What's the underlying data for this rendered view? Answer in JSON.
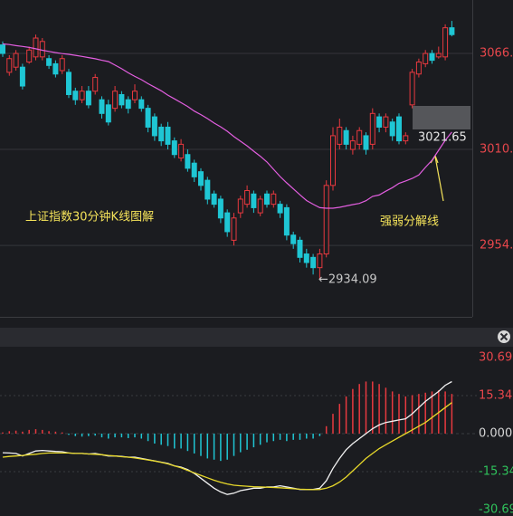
{
  "chart_data": [
    {
      "type": "candlestick",
      "ohlc": [
        [
          3071,
          3073,
          3064,
          3066
        ],
        [
          3055,
          3065,
          3053,
          3063
        ],
        [
          3058,
          3068,
          3056,
          3066
        ],
        [
          3058,
          3060,
          3045,
          3047
        ],
        [
          3061,
          3070,
          3060,
          3068
        ],
        [
          3064,
          3077,
          3062,
          3075
        ],
        [
          3064,
          3075,
          3062,
          3073
        ],
        [
          3063,
          3065,
          3057,
          3059
        ],
        [
          3060,
          3062,
          3052,
          3054
        ],
        [
          3056,
          3065,
          3054,
          3063
        ],
        [
          3055,
          3057,
          3040,
          3042
        ],
        [
          3044,
          3046,
          3036,
          3039
        ],
        [
          3039,
          3047,
          3037,
          3044
        ],
        [
          3044,
          3047,
          3034,
          3036
        ],
        [
          3044,
          3054,
          3042,
          3052
        ],
        [
          3039,
          3041,
          3028,
          3031
        ],
        [
          3036,
          3039,
          3024,
          3026
        ],
        [
          3034,
          3047,
          3032,
          3044
        ],
        [
          3042,
          3044,
          3034,
          3036
        ],
        [
          3039,
          3041,
          3031,
          3034
        ],
        [
          3039,
          3048,
          3037,
          3044
        ],
        [
          3039,
          3041,
          3032,
          3034
        ],
        [
          3034,
          3036,
          3020,
          3023
        ],
        [
          3029,
          3031,
          3015,
          3018
        ],
        [
          3023,
          3025,
          3012,
          3015
        ],
        [
          3023,
          3026,
          3010,
          3013
        ],
        [
          3015,
          3017,
          3005,
          3007
        ],
        [
          3005,
          3016,
          3003,
          3013
        ],
        [
          3007,
          3010,
          2997,
          2999
        ],
        [
          3002,
          3004,
          2991,
          2994
        ],
        [
          2997,
          2999,
          2986,
          2989
        ],
        [
          2992,
          2994,
          2978,
          2981
        ],
        [
          2984,
          2986,
          2976,
          2978
        ],
        [
          2981,
          2983,
          2967,
          2970
        ],
        [
          2973,
          2975,
          2959,
          2962
        ],
        [
          2957,
          2973,
          2954,
          2970
        ],
        [
          2973,
          2983,
          2970,
          2981
        ],
        [
          2978,
          2989,
          2976,
          2986
        ],
        [
          2984,
          2986,
          2973,
          2976
        ],
        [
          2973,
          2983,
          2971,
          2981
        ],
        [
          2984,
          2986,
          2976,
          2978
        ],
        [
          2978,
          2986,
          2976,
          2984
        ],
        [
          2978,
          2980,
          2970,
          2973
        ],
        [
          2976,
          2978,
          2957,
          2960
        ],
        [
          2960,
          2962,
          2952,
          2955
        ],
        [
          2957,
          2959,
          2944,
          2947
        ],
        [
          2949,
          2952,
          2941,
          2944
        ],
        [
          2947,
          2949,
          2937,
          2941
        ],
        [
          2941,
          2952,
          2934.09,
          2949
        ],
        [
          2949,
          2992,
          2947,
          2989
        ],
        [
          2989,
          3023,
          2986,
          3018
        ],
        [
          3013,
          3028,
          3010,
          3023
        ],
        [
          3021,
          3023,
          3010,
          3013
        ],
        [
          3010,
          3018,
          3007,
          3015
        ],
        [
          3013,
          3023,
          3010,
          3021
        ],
        [
          3018,
          3020,
          3007,
          3010
        ],
        [
          3013,
          3034,
          3010,
          3031
        ],
        [
          3029,
          3031,
          3020,
          3023
        ],
        [
          3023,
          3031,
          3020,
          3029
        ],
        [
          3026,
          3028,
          3015,
          3018
        ],
        [
          3029,
          3031,
          3013,
          3015
        ],
        [
          3015,
          3020,
          3013,
          3018
        ],
        [
          3036,
          3057,
          3034,
          3055
        ],
        [
          3054,
          3063,
          3052,
          3061
        ],
        [
          3060,
          3068,
          3058,
          3066
        ],
        [
          3066,
          3068,
          3060,
          3062
        ],
        [
          3064,
          3070,
          3063,
          3066
        ],
        [
          3064,
          3083,
          3062,
          3081
        ],
        [
          3081,
          3085,
          3076,
          3077
        ]
      ],
      "up_color": "#e8393f",
      "down_color": "#1fc6d4",
      "ma": {
        "color": "#e35ee0",
        "values": [
          3071.6,
          3071.2,
          3070.6,
          3070.1,
          3069.5,
          3068.7,
          3067.9,
          3067.2,
          3066.5,
          3065.9,
          3065.5,
          3064.9,
          3064.3,
          3063.6,
          3062.9,
          3062.0,
          3061.3,
          3059.2,
          3057.1,
          3054.7,
          3052.6,
          3050.7,
          3048.4,
          3046.3,
          3044.2,
          3041.7,
          3039.5,
          3037.3,
          3035.1,
          3032.4,
          3030.3,
          3028.0,
          3025.4,
          3023.2,
          3020.6,
          3017.5,
          3014.8,
          3012.1,
          3009.0,
          3006.0,
          3002.7,
          2998.4,
          2994.2,
          2990.5,
          2987.0,
          2983.5,
          2980.2,
          2978.0,
          2976.0,
          2975.7,
          2975.7,
          2976.2,
          2977.0,
          2977.8,
          2978.5,
          2980.1,
          2982.6,
          2983.4,
          2985.6,
          2987.7,
          2990.2,
          2991.6,
          2993.1,
          2995.1,
          2999.5,
          3003.7,
          3009.5,
          3015.3,
          3020.1
        ]
      },
      "ylim": [
        2912.3,
        3097.2
      ],
      "yticks": [
        {
          "value": 3066,
          "label": "3066."
        },
        {
          "value": 3010,
          "label": "3010."
        },
        {
          "value": 2954,
          "label": "2954."
        }
      ],
      "grid": true,
      "annotations": [
        "上证指数30分钟K线图解",
        "强弱分解线"
      ],
      "price_labels": [
        {
          "value": 3021.65,
          "label": "3021.65"
        },
        {
          "value": 2934.09,
          "label": "←2934.09"
        }
      ]
    },
    {
      "type": "macd",
      "histogram": {
        "up_color": "#e8393f",
        "down_color": "#1fc6d4",
        "values": [
          0.5,
          1.0,
          1.2,
          0.8,
          1.5,
          1.8,
          1.5,
          1.0,
          0.8,
          0.5,
          -0.5,
          -1.0,
          -1.2,
          -1.0,
          -0.8,
          -1.5,
          -2.0,
          -1.5,
          -1.5,
          -1.8,
          -1.5,
          -2.0,
          -3.0,
          -4.0,
          -4.5,
          -5.0,
          -6.0,
          -6.0,
          -7.0,
          -8.0,
          -9.0,
          -10.0,
          -10.5,
          -11.0,
          -10.5,
          -9.0,
          -7.5,
          -6.5,
          -5.5,
          -4.5,
          -3.5,
          -3.0,
          -2.5,
          -3.0,
          -2.5,
          -2.5,
          -2.0,
          -2.0,
          -1.0,
          3.0,
          8.0,
          12.0,
          15.0,
          18.0,
          20.0,
          21.0,
          21.0,
          20.0,
          18.5,
          17.0,
          16.0,
          15.0,
          15.5,
          16.0,
          16.5,
          17.0,
          17.5,
          17.0,
          16.0
        ]
      },
      "series": [
        {
          "color": "#f2f2f2",
          "values": [
            -7.7,
            -7.8,
            -8.0,
            -9.0,
            -8.0,
            -7.0,
            -6.8,
            -7.0,
            -7.2,
            -7.3,
            -7.8,
            -8.0,
            -8.0,
            -8.2,
            -8.0,
            -8.5,
            -9.0,
            -9.0,
            -9.2,
            -9.5,
            -9.5,
            -10.0,
            -10.5,
            -11.0,
            -11.5,
            -12.0,
            -13.0,
            -13.5,
            -14.5,
            -16.0,
            -18.0,
            -20.0,
            -22.0,
            -23.5,
            -24.5,
            -24.0,
            -23.0,
            -22.5,
            -22.0,
            -22.0,
            -21.5,
            -21.5,
            -21.0,
            -21.5,
            -22.0,
            -22.5,
            -22.5,
            -22.5,
            -22.0,
            -19.0,
            -14.0,
            -10.0,
            -6.5,
            -4.0,
            -2.0,
            0.0,
            2.0,
            3.5,
            4.5,
            5.0,
            5.5,
            6.0,
            8.0,
            10.5,
            13.0,
            15.0,
            17.0,
            19.5,
            21.0
          ]
        },
        {
          "color": "#e8d92a",
          "values": [
            -9.5,
            -9.2,
            -9.0,
            -8.8,
            -8.5,
            -8.3,
            -8.0,
            -7.8,
            -7.8,
            -7.8,
            -7.8,
            -8.0,
            -8.0,
            -8.2,
            -8.3,
            -8.5,
            -8.8,
            -9.0,
            -9.3,
            -9.5,
            -9.8,
            -10.2,
            -10.6,
            -11.0,
            -11.6,
            -12.2,
            -13.0,
            -13.8,
            -14.8,
            -15.8,
            -16.8,
            -17.8,
            -18.8,
            -19.6,
            -20.3,
            -20.8,
            -21.0,
            -21.2,
            -21.4,
            -21.5,
            -21.6,
            -21.7,
            -21.8,
            -22.0,
            -22.2,
            -22.4,
            -22.5,
            -22.6,
            -22.5,
            -22.0,
            -21.0,
            -19.5,
            -17.5,
            -15.0,
            -12.5,
            -10.0,
            -8.0,
            -6.0,
            -4.5,
            -3.0,
            -1.5,
            0.0,
            1.5,
            3.0,
            4.5,
            6.5,
            8.5,
            10.5,
            12.5
          ]
        }
      ],
      "ylim": [
        -33.2,
        34.3
      ],
      "yticks": [
        30.69,
        15.34,
        {
          "value": 0,
          "label": "0.000"
        },
        -15.34,
        -30.69
      ],
      "grid": true
    }
  ]
}
